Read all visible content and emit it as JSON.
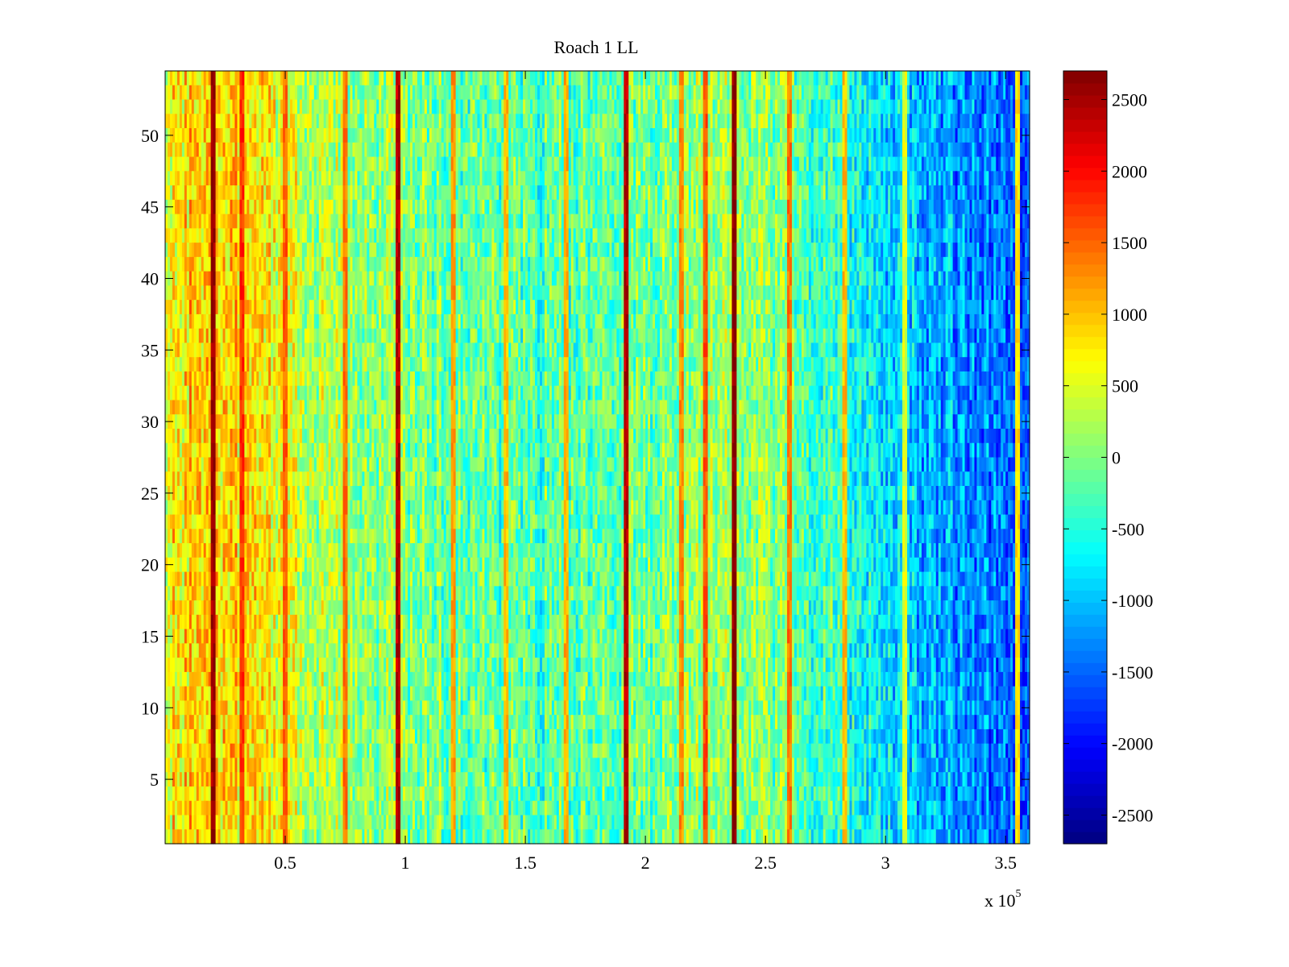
{
  "chart_data": {
    "type": "heatmap",
    "title": "Roach 1 LL",
    "xlabel": "",
    "ylabel": "",
    "x_exponent_label": "x 10",
    "x_exponent_power": "5",
    "xlim": [
      0,
      3.6
    ],
    "ylim": [
      0.5,
      54.5
    ],
    "x_ticks": [
      0.5,
      1,
      1.5,
      2,
      2.5,
      3,
      3.5
    ],
    "x_tick_labels": [
      "0.5",
      "1",
      "1.5",
      "2",
      "2.5",
      "3",
      "3.5"
    ],
    "y_ticks": [
      5,
      10,
      15,
      20,
      25,
      30,
      35,
      40,
      45,
      50
    ],
    "y_tick_labels": [
      "5",
      "10",
      "15",
      "20",
      "25",
      "30",
      "35",
      "40",
      "45",
      "50"
    ],
    "colormap": "jet",
    "clim": [
      -2700,
      2700
    ],
    "colorbar_ticks": [
      2500,
      2000,
      1500,
      1000,
      500,
      0,
      -500,
      -1000,
      -1500,
      -2000,
      -2500
    ],
    "colorbar_tick_labels": [
      "2500",
      "2000",
      "1500",
      "1000",
      "500",
      "0",
      "-500",
      "-1000",
      "-1500",
      "-2000",
      "-2500"
    ],
    "rows": 54,
    "columns": 360,
    "column_trend": [
      {
        "x": 0.0,
        "value": 700
      },
      {
        "x": 0.2,
        "value": 1000
      },
      {
        "x": 0.4,
        "value": 750
      },
      {
        "x": 0.6,
        "value": 300
      },
      {
        "x": 1.0,
        "value": 0
      },
      {
        "x": 1.5,
        "value": -250
      },
      {
        "x": 2.0,
        "value": -150
      },
      {
        "x": 2.3,
        "value": 250
      },
      {
        "x": 2.5,
        "value": 0
      },
      {
        "x": 2.8,
        "value": -400
      },
      {
        "x": 3.0,
        "value": -800
      },
      {
        "x": 3.3,
        "value": -1200
      },
      {
        "x": 3.6,
        "value": -1600
      }
    ],
    "vertical_stripes": [
      {
        "x": 0.2,
        "value": 2600
      },
      {
        "x": 0.32,
        "value": 1800
      },
      {
        "x": 0.5,
        "value": 1500
      },
      {
        "x": 0.75,
        "value": 1400
      },
      {
        "x": 0.97,
        "value": 2400
      },
      {
        "x": 1.2,
        "value": 1200
      },
      {
        "x": 1.42,
        "value": 1000
      },
      {
        "x": 1.67,
        "value": 1100
      },
      {
        "x": 1.92,
        "value": 2400
      },
      {
        "x": 2.15,
        "value": 1300
      },
      {
        "x": 2.25,
        "value": 1600
      },
      {
        "x": 2.37,
        "value": 2700
      },
      {
        "x": 2.6,
        "value": 1400
      },
      {
        "x": 2.83,
        "value": 1000
      },
      {
        "x": 3.08,
        "value": 500
      },
      {
        "x": 3.55,
        "value": 800
      }
    ]
  }
}
